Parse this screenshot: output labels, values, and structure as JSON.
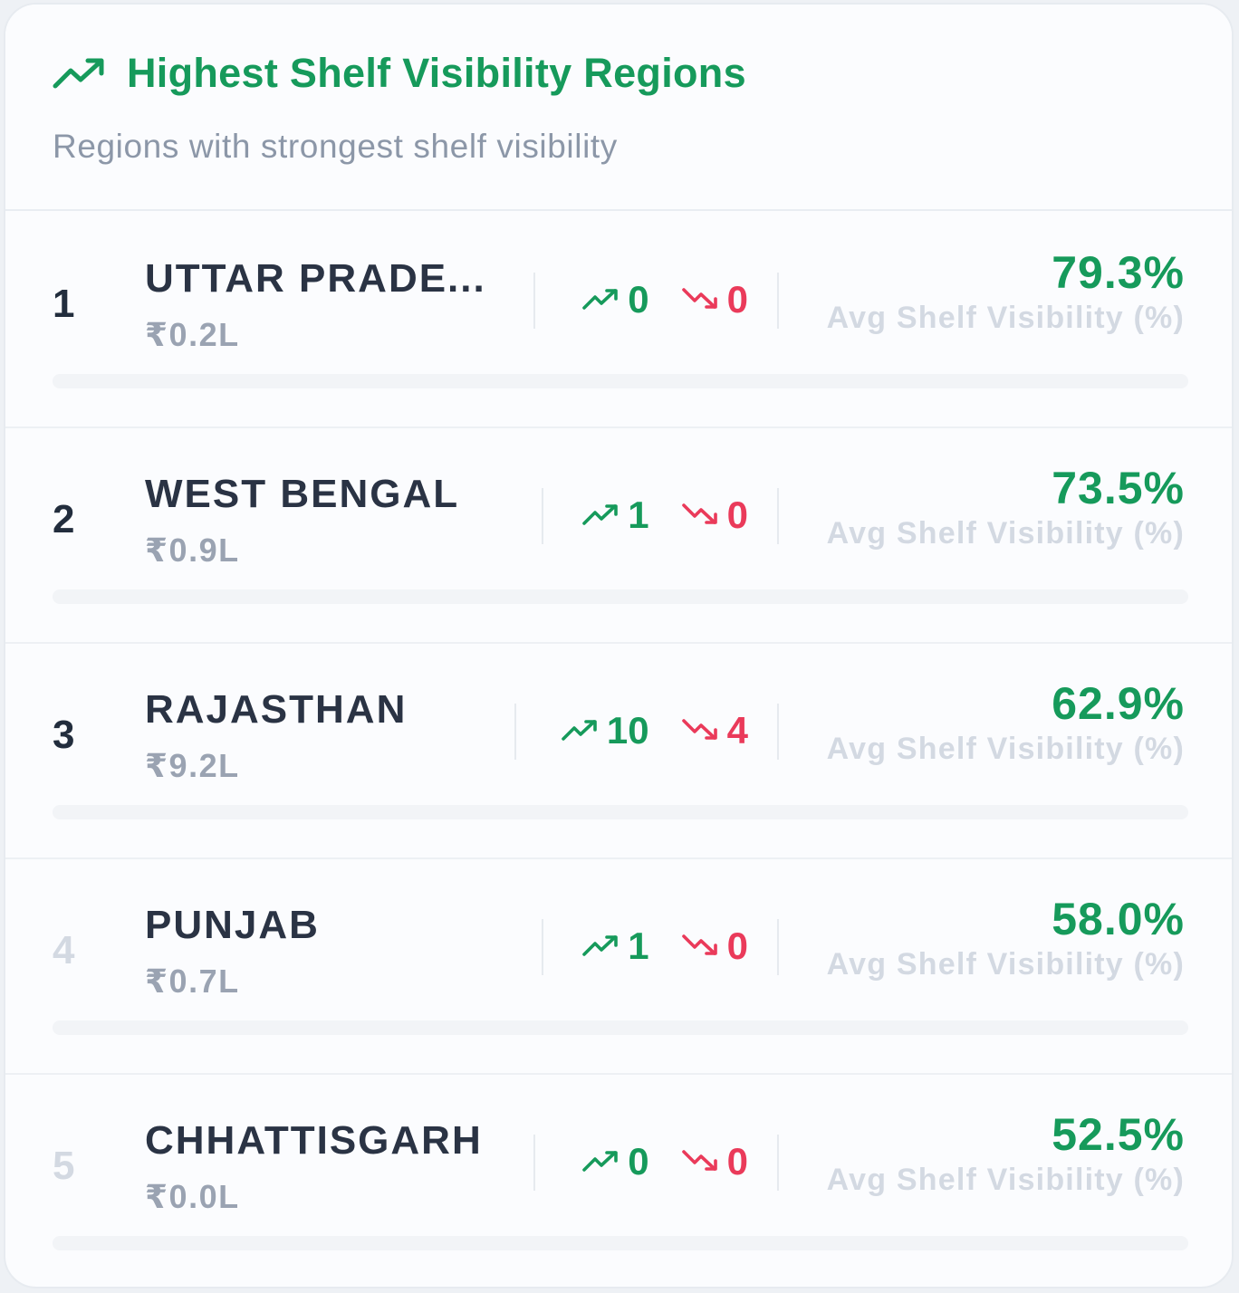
{
  "card": {
    "title": "Highest Shelf Visibility Regions",
    "subtitle": "Regions with strongest shelf visibility",
    "title_icon": "trending-up-icon"
  },
  "colors": {
    "accent_green": "#169a5b",
    "accent_red": "#ea3a5a",
    "text_dark": "#2a3344",
    "text_muted": "#9aa3b2",
    "text_faint": "#d3d9e2"
  },
  "regions": [
    {
      "rank": "1",
      "name": "UTTAR PRADE...",
      "value": "₹0.2L",
      "up": "0",
      "down": "0",
      "visibility": "79.3%",
      "visibility_label": "Avg Shelf Visibility (%)",
      "visibility_fraction": 0.793,
      "rank_muted": false
    },
    {
      "rank": "2",
      "name": "WEST BENGAL",
      "value": "₹0.9L",
      "up": "1",
      "down": "0",
      "visibility": "73.5%",
      "visibility_label": "Avg Shelf Visibility (%)",
      "visibility_fraction": 0.735,
      "rank_muted": false
    },
    {
      "rank": "3",
      "name": "RAJASTHAN",
      "value": "₹9.2L",
      "up": "10",
      "down": "4",
      "visibility": "62.9%",
      "visibility_label": "Avg Shelf Visibility (%)",
      "visibility_fraction": 0.629,
      "rank_muted": false
    },
    {
      "rank": "4",
      "name": "PUNJAB",
      "value": "₹0.7L",
      "up": "1",
      "down": "0",
      "visibility": "58.0%",
      "visibility_label": "Avg Shelf Visibility (%)",
      "visibility_fraction": 0.58,
      "rank_muted": true
    },
    {
      "rank": "5",
      "name": "CHHATTISGARH",
      "value": "₹0.0L",
      "up": "0",
      "down": "0",
      "visibility": "52.5%",
      "visibility_label": "Avg Shelf Visibility (%)",
      "visibility_fraction": 0.525,
      "rank_muted": true
    }
  ]
}
